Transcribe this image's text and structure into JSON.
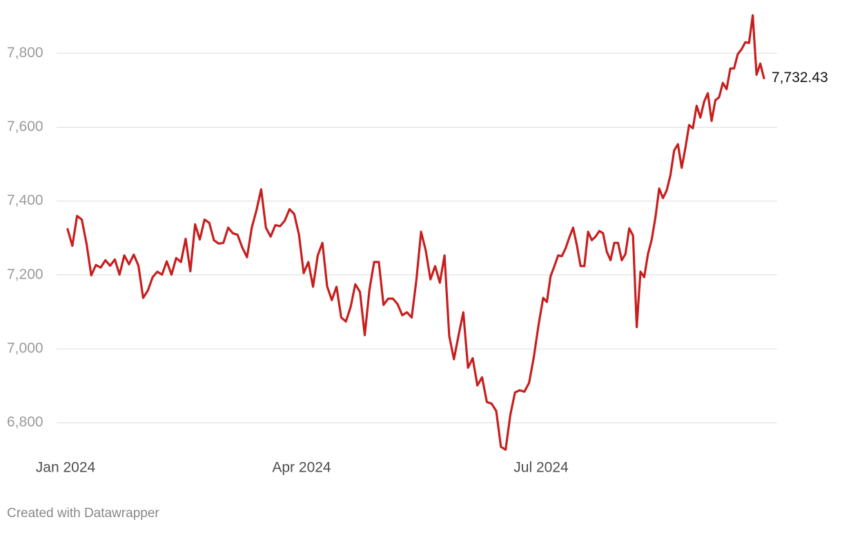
{
  "chart_data": {
    "type": "line",
    "footer": "Created with Datawrapper",
    "xlim": [
      0,
      160
    ],
    "xticks": [
      {
        "value": 0,
        "label": "Jan 2024"
      },
      {
        "value": 50,
        "label": "Apr 2024"
      },
      {
        "value": 101,
        "label": "Jul 2024"
      }
    ],
    "ylim": [
      6720,
      7920
    ],
    "yticks": [
      {
        "value": 6800,
        "label": "6,800"
      },
      {
        "value": 7000,
        "label": "7,000"
      },
      {
        "value": 7200,
        "label": "7,200"
      },
      {
        "value": 7400,
        "label": "7,400"
      },
      {
        "value": 7600,
        "label": "7,600"
      },
      {
        "value": 7800,
        "label": "7,800"
      }
    ],
    "grid": true,
    "series": [
      {
        "color": "#c71e1d",
        "values": [
          7324,
          7279,
          7360,
          7350,
          7285,
          7199,
          7227,
          7220,
          7240,
          7225,
          7242,
          7201,
          7253,
          7229,
          7255,
          7225,
          7138,
          7158,
          7194,
          7209,
          7201,
          7237,
          7201,
          7246,
          7235,
          7298,
          7210,
          7337,
          7296,
          7350,
          7341,
          7294,
          7285,
          7287,
          7328,
          7313,
          7309,
          7274,
          7248,
          7328,
          7375,
          7432,
          7328,
          7304,
          7335,
          7332,
          7347,
          7378,
          7365,
          7309,
          7205,
          7235,
          7168,
          7253,
          7287,
          7169,
          7132,
          7168,
          7085,
          7074,
          7113,
          7175,
          7154,
          7037,
          7160,
          7235,
          7235,
          7119,
          7136,
          7136,
          7121,
          7091,
          7099,
          7085,
          7186,
          7317,
          7266,
          7188,
          7224,
          7179,
          7253,
          7035,
          6972,
          7037,
          7099,
          6949,
          6975,
          6901,
          6923,
          6856,
          6852,
          6832,
          6735,
          6727,
          6821,
          6882,
          6888,
          6884,
          6908,
          6977,
          7063,
          7138,
          7127,
          7197,
          7224,
          7253,
          7251,
          7272,
          7302,
          7328,
          7281,
          7224,
          7224,
          7317,
          7294,
          7304,
          7319,
          7313,
          7263,
          7240,
          7287,
          7287,
          7240,
          7257,
          7326,
          7307,
          7059,
          7209,
          7194,
          7257,
          7296,
          7356,
          7434,
          7408,
          7429,
          7470,
          7537,
          7554,
          7490,
          7544,
          7606,
          7597,
          7658,
          7626,
          7669,
          7692,
          7617,
          7673,
          7681,
          7720,
          7703,
          7759,
          7759,
          7798,
          7811,
          7830,
          7828,
          7903,
          7742,
          7772,
          7732.43
        ],
        "value_labels": {
          "160": "7,732.43"
        }
      }
    ]
  }
}
